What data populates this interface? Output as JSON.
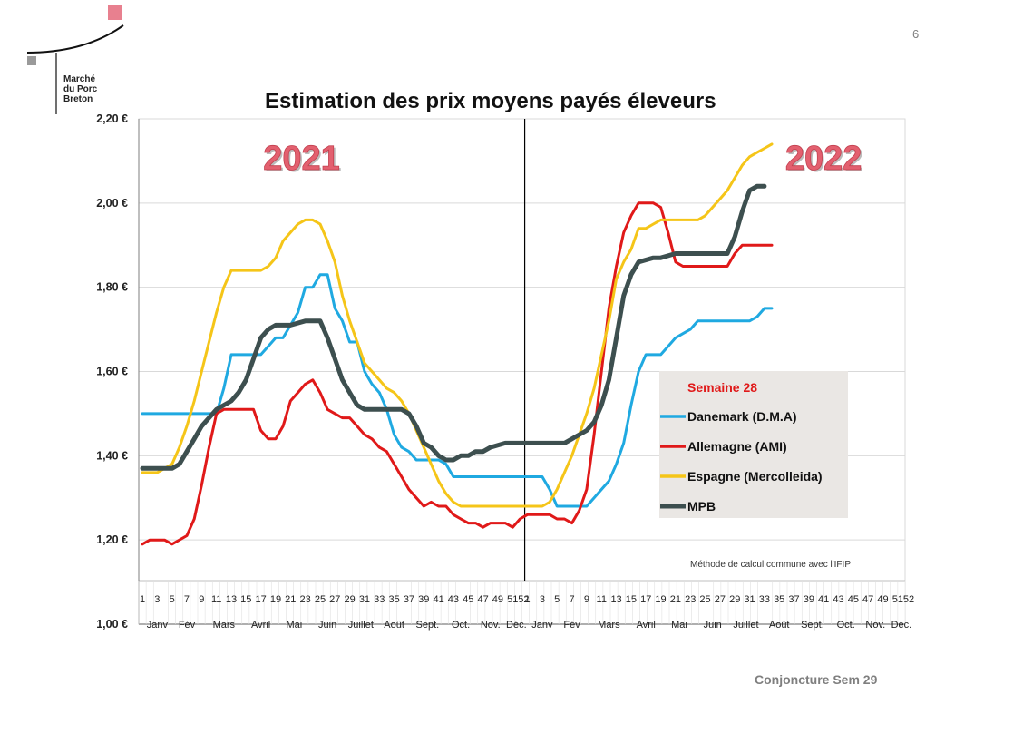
{
  "slide": {
    "page_number": "6",
    "logo_lines": [
      "Marché",
      "du Porc",
      "Breton"
    ],
    "footer": "Conjoncture Sem 29"
  },
  "chart_data": {
    "type": "line",
    "title": "Estimation des prix moyens payés éleveurs",
    "year_labels": [
      "2021",
      "2022"
    ],
    "ylim": [
      1.0,
      2.2
    ],
    "y_ticks": [
      {
        "value": 2.2,
        "label": "2,20 €"
      },
      {
        "value": 2.0,
        "label": "2,00 €"
      },
      {
        "value": 1.8,
        "label": "1,80 €"
      },
      {
        "value": 1.6,
        "label": "1,60 €"
      },
      {
        "value": 1.4,
        "label": "1,40 €"
      },
      {
        "value": 1.2,
        "label": "1,20 €"
      },
      {
        "value": 1.0,
        "label": "1,00 €"
      }
    ],
    "grid": true,
    "x_range": [
      1,
      104
    ],
    "x_week_labels": [
      "1",
      "3",
      "5",
      "7",
      "9",
      "11",
      "13",
      "15",
      "17",
      "19",
      "21",
      "23",
      "25",
      "27",
      "29",
      "31",
      "33",
      "35",
      "37",
      "39",
      "41",
      "43",
      "45",
      "47",
      "49",
      "51",
      "52",
      "1",
      "3",
      "5",
      "7",
      "9",
      "11",
      "13",
      "15",
      "17",
      "19",
      "21",
      "23",
      "25",
      "27",
      "29",
      "31",
      "33",
      "35",
      "37",
      "39",
      "41",
      "43",
      "45",
      "47",
      "49",
      "51",
      "52"
    ],
    "x_month_labels": [
      "Janv",
      "Fév",
      "Mars",
      "Avril",
      "Mai",
      "Juin",
      "Juillet",
      "Août",
      "Sept.",
      "Oct.",
      "Nov.",
      "Déc.",
      "Janv",
      "Fév",
      "Mars",
      "Avril",
      "Mai",
      "Juin",
      "Juillet",
      "Août",
      "Sept.",
      "Oct.",
      "Nov.",
      "Déc."
    ],
    "legend": {
      "title": "Semaine 28",
      "placement": "right"
    },
    "annotation": "Méthode de calcul commune avec l'IFIP",
    "series": [
      {
        "name": "Danemark (D.M.A)",
        "color": "#1fa9e1",
        "points": [
          [
            1,
            1.5
          ],
          [
            5,
            1.5
          ],
          [
            9,
            1.5
          ],
          [
            11,
            1.5
          ],
          [
            12,
            1.56
          ],
          [
            13,
            1.64
          ],
          [
            15,
            1.64
          ],
          [
            17,
            1.64
          ],
          [
            18,
            1.66
          ],
          [
            19,
            1.68
          ],
          [
            20,
            1.68
          ],
          [
            22,
            1.74
          ],
          [
            23,
            1.8
          ],
          [
            24,
            1.8
          ],
          [
            25,
            1.83
          ],
          [
            26,
            1.83
          ],
          [
            27,
            1.75
          ],
          [
            28,
            1.72
          ],
          [
            29,
            1.67
          ],
          [
            30,
            1.67
          ],
          [
            31,
            1.6
          ],
          [
            32,
            1.57
          ],
          [
            33,
            1.55
          ],
          [
            34,
            1.51
          ],
          [
            35,
            1.45
          ],
          [
            36,
            1.42
          ],
          [
            37,
            1.41
          ],
          [
            38,
            1.39
          ],
          [
            41,
            1.39
          ],
          [
            42,
            1.38
          ],
          [
            43,
            1.35
          ],
          [
            45,
            1.35
          ],
          [
            50,
            1.35
          ],
          [
            53,
            1.35
          ],
          [
            55,
            1.35
          ],
          [
            56,
            1.32
          ],
          [
            57,
            1.28
          ],
          [
            60,
            1.28
          ],
          [
            61,
            1.28
          ],
          [
            62,
            1.3
          ],
          [
            63,
            1.32
          ],
          [
            64,
            1.34
          ],
          [
            65,
            1.38
          ],
          [
            66,
            1.43
          ],
          [
            67,
            1.52
          ],
          [
            68,
            1.6
          ],
          [
            69,
            1.64
          ],
          [
            71,
            1.64
          ],
          [
            72,
            1.66
          ],
          [
            73,
            1.68
          ],
          [
            74,
            1.69
          ],
          [
            75,
            1.7
          ],
          [
            76,
            1.72
          ],
          [
            79,
            1.72
          ],
          [
            83,
            1.72
          ],
          [
            84,
            1.73
          ],
          [
            85,
            1.75
          ],
          [
            86,
            1.75
          ]
        ]
      },
      {
        "name": "Allemagne (AMI)",
        "color": "#e01919",
        "points": [
          [
            1,
            1.19
          ],
          [
            2,
            1.2
          ],
          [
            4,
            1.2
          ],
          [
            5,
            1.19
          ],
          [
            6,
            1.2
          ],
          [
            7,
            1.21
          ],
          [
            8,
            1.25
          ],
          [
            9,
            1.33
          ],
          [
            10,
            1.42
          ],
          [
            11,
            1.5
          ],
          [
            12,
            1.51
          ],
          [
            13,
            1.51
          ],
          [
            15,
            1.51
          ],
          [
            16,
            1.51
          ],
          [
            17,
            1.46
          ],
          [
            18,
            1.44
          ],
          [
            19,
            1.44
          ],
          [
            20,
            1.47
          ],
          [
            21,
            1.53
          ],
          [
            22,
            1.55
          ],
          [
            23,
            1.57
          ],
          [
            24,
            1.58
          ],
          [
            25,
            1.55
          ],
          [
            26,
            1.51
          ],
          [
            27,
            1.5
          ],
          [
            28,
            1.49
          ],
          [
            29,
            1.49
          ],
          [
            30,
            1.47
          ],
          [
            31,
            1.45
          ],
          [
            32,
            1.44
          ],
          [
            33,
            1.42
          ],
          [
            34,
            1.41
          ],
          [
            35,
            1.38
          ],
          [
            36,
            1.35
          ],
          [
            37,
            1.32
          ],
          [
            38,
            1.3
          ],
          [
            39,
            1.28
          ],
          [
            40,
            1.29
          ],
          [
            41,
            1.28
          ],
          [
            42,
            1.28
          ],
          [
            43,
            1.26
          ],
          [
            44,
            1.25
          ],
          [
            45,
            1.24
          ],
          [
            46,
            1.24
          ],
          [
            47,
            1.23
          ],
          [
            48,
            1.24
          ],
          [
            50,
            1.24
          ],
          [
            51,
            1.23
          ],
          [
            52,
            1.25
          ],
          [
            53,
            1.26
          ],
          [
            55,
            1.26
          ],
          [
            56,
            1.26
          ],
          [
            57,
            1.25
          ],
          [
            58,
            1.25
          ],
          [
            59,
            1.24
          ],
          [
            60,
            1.27
          ],
          [
            61,
            1.32
          ],
          [
            62,
            1.45
          ],
          [
            63,
            1.6
          ],
          [
            64,
            1.75
          ],
          [
            65,
            1.85
          ],
          [
            66,
            1.93
          ],
          [
            67,
            1.97
          ],
          [
            68,
            2.0
          ],
          [
            70,
            2.0
          ],
          [
            71,
            1.99
          ],
          [
            72,
            1.93
          ],
          [
            73,
            1.86
          ],
          [
            74,
            1.85
          ],
          [
            75,
            1.85
          ],
          [
            79,
            1.85
          ],
          [
            80,
            1.85
          ],
          [
            81,
            1.88
          ],
          [
            82,
            1.9
          ],
          [
            84,
            1.9
          ],
          [
            86,
            1.9
          ]
        ]
      },
      {
        "name": "Espagne (Mercolleida)",
        "color": "#f5c518",
        "points": [
          [
            1,
            1.36
          ],
          [
            3,
            1.36
          ],
          [
            5,
            1.38
          ],
          [
            6,
            1.42
          ],
          [
            7,
            1.47
          ],
          [
            8,
            1.53
          ],
          [
            9,
            1.6
          ],
          [
            10,
            1.67
          ],
          [
            11,
            1.74
          ],
          [
            12,
            1.8
          ],
          [
            13,
            1.84
          ],
          [
            15,
            1.84
          ],
          [
            17,
            1.84
          ],
          [
            18,
            1.85
          ],
          [
            19,
            1.87
          ],
          [
            20,
            1.91
          ],
          [
            21,
            1.93
          ],
          [
            22,
            1.95
          ],
          [
            23,
            1.96
          ],
          [
            24,
            1.96
          ],
          [
            25,
            1.95
          ],
          [
            26,
            1.91
          ],
          [
            27,
            1.86
          ],
          [
            28,
            1.78
          ],
          [
            29,
            1.72
          ],
          [
            30,
            1.67
          ],
          [
            31,
            1.62
          ],
          [
            32,
            1.6
          ],
          [
            33,
            1.58
          ],
          [
            34,
            1.56
          ],
          [
            35,
            1.55
          ],
          [
            36,
            1.53
          ],
          [
            37,
            1.5
          ],
          [
            38,
            1.46
          ],
          [
            39,
            1.42
          ],
          [
            40,
            1.38
          ],
          [
            41,
            1.34
          ],
          [
            42,
            1.31
          ],
          [
            43,
            1.29
          ],
          [
            44,
            1.28
          ],
          [
            45,
            1.28
          ],
          [
            47,
            1.28
          ],
          [
            50,
            1.28
          ],
          [
            53,
            1.28
          ],
          [
            55,
            1.28
          ],
          [
            56,
            1.29
          ],
          [
            57,
            1.32
          ],
          [
            58,
            1.36
          ],
          [
            59,
            1.4
          ],
          [
            60,
            1.45
          ],
          [
            61,
            1.5
          ],
          [
            62,
            1.56
          ],
          [
            63,
            1.64
          ],
          [
            64,
            1.72
          ],
          [
            65,
            1.82
          ],
          [
            66,
            1.86
          ],
          [
            67,
            1.89
          ],
          [
            68,
            1.94
          ],
          [
            69,
            1.94
          ],
          [
            70,
            1.95
          ],
          [
            71,
            1.96
          ],
          [
            73,
            1.96
          ],
          [
            76,
            1.96
          ],
          [
            77,
            1.97
          ],
          [
            78,
            1.99
          ],
          [
            79,
            2.01
          ],
          [
            80,
            2.03
          ],
          [
            81,
            2.06
          ],
          [
            82,
            2.09
          ],
          [
            83,
            2.11
          ],
          [
            84,
            2.12
          ],
          [
            85,
            2.13
          ],
          [
            86,
            2.14
          ]
        ]
      },
      {
        "name": "MPB",
        "color": "#3d4f4f",
        "points": [
          [
            1,
            1.37
          ],
          [
            3,
            1.37
          ],
          [
            5,
            1.37
          ],
          [
            6,
            1.38
          ],
          [
            7,
            1.41
          ],
          [
            8,
            1.44
          ],
          [
            9,
            1.47
          ],
          [
            10,
            1.49
          ],
          [
            11,
            1.51
          ],
          [
            12,
            1.52
          ],
          [
            13,
            1.53
          ],
          [
            14,
            1.55
          ],
          [
            15,
            1.58
          ],
          [
            16,
            1.63
          ],
          [
            17,
            1.68
          ],
          [
            18,
            1.7
          ],
          [
            19,
            1.71
          ],
          [
            21,
            1.71
          ],
          [
            23,
            1.72
          ],
          [
            25,
            1.72
          ],
          [
            26,
            1.68
          ],
          [
            27,
            1.63
          ],
          [
            28,
            1.58
          ],
          [
            29,
            1.55
          ],
          [
            30,
            1.52
          ],
          [
            31,
            1.51
          ],
          [
            33,
            1.51
          ],
          [
            35,
            1.51
          ],
          [
            36,
            1.51
          ],
          [
            37,
            1.5
          ],
          [
            38,
            1.47
          ],
          [
            39,
            1.43
          ],
          [
            40,
            1.42
          ],
          [
            41,
            1.4
          ],
          [
            42,
            1.39
          ],
          [
            43,
            1.39
          ],
          [
            44,
            1.4
          ],
          [
            45,
            1.4
          ],
          [
            46,
            1.41
          ],
          [
            47,
            1.41
          ],
          [
            48,
            1.42
          ],
          [
            50,
            1.43
          ],
          [
            53,
            1.43
          ],
          [
            55,
            1.43
          ],
          [
            58,
            1.43
          ],
          [
            59,
            1.44
          ],
          [
            60,
            1.45
          ],
          [
            61,
            1.46
          ],
          [
            62,
            1.48
          ],
          [
            63,
            1.52
          ],
          [
            64,
            1.58
          ],
          [
            65,
            1.68
          ],
          [
            66,
            1.78
          ],
          [
            67,
            1.83
          ],
          [
            68,
            1.86
          ],
          [
            70,
            1.87
          ],
          [
            71,
            1.87
          ],
          [
            73,
            1.88
          ],
          [
            75,
            1.88
          ],
          [
            79,
            1.88
          ],
          [
            80,
            1.88
          ],
          [
            81,
            1.92
          ],
          [
            82,
            1.98
          ],
          [
            83,
            2.03
          ],
          [
            84,
            2.04
          ],
          [
            85,
            2.04
          ]
        ]
      }
    ]
  }
}
